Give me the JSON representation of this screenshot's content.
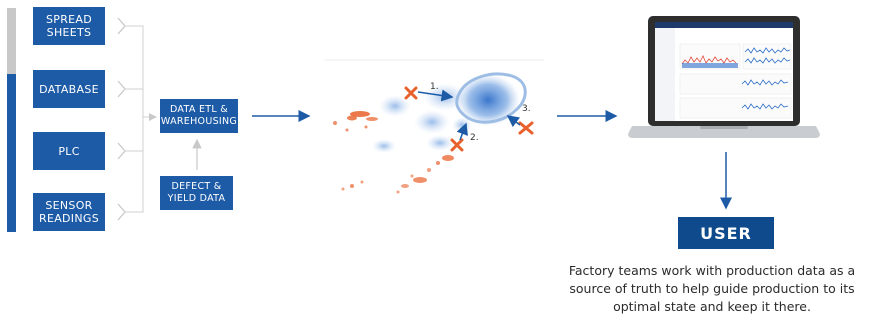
{
  "sources": [
    {
      "label": "SPREAD\nSHEETS"
    },
    {
      "label": "DATABASE"
    },
    {
      "label": "PLC"
    },
    {
      "label": "SENSOR\nREADINGS"
    }
  ],
  "etl": {
    "label": "DATA ETL &\nWAREHOUSING"
  },
  "defect": {
    "label": "DEFECT &\nYIELD DATA"
  },
  "steps": [
    "1.",
    "2.",
    "3."
  ],
  "user": {
    "label": "USER"
  },
  "caption": "Factory teams work with production data as a\nsource of truth to help guide production to its\noptimal state and keep it there.",
  "colors": {
    "brand_blue": "#1d5ba6",
    "accent_orange": "#e8612c",
    "cluster_blue": "#3a7bd5"
  }
}
